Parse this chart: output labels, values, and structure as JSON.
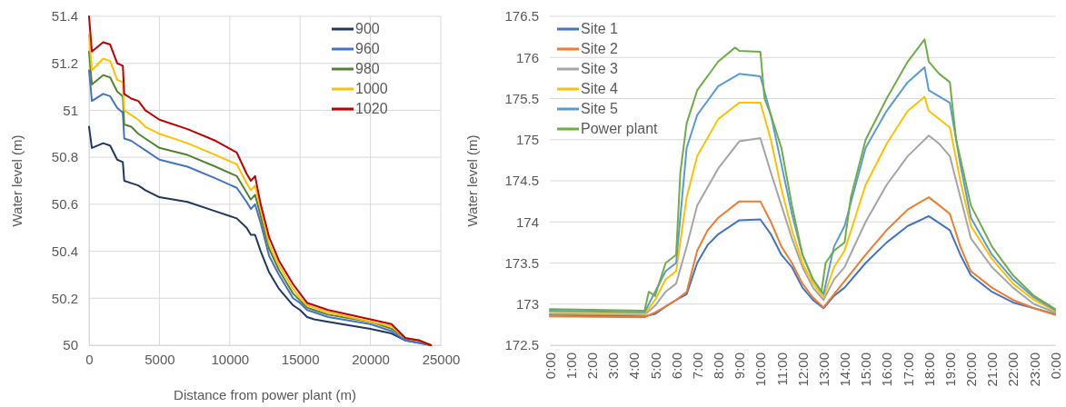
{
  "chart_data": [
    {
      "type": "line",
      "xlabel": "Distance from power plant (m)",
      "ylabel": "Water level (m)",
      "x": [
        0,
        200,
        1000,
        1500,
        2000,
        2400,
        2500,
        3000,
        3500,
        4000,
        5000,
        7000,
        9000,
        10500,
        11200,
        11500,
        11800,
        12200,
        12800,
        13500,
        14500,
        15000,
        15500,
        16000,
        17000,
        20000,
        21500,
        22500,
        23500,
        24300
      ],
      "xlim": [
        0,
        25000
      ],
      "xticks": [
        0,
        5000,
        10000,
        15000,
        20000,
        25000
      ],
      "ylim": [
        50,
        51.4
      ],
      "yticks": [
        50,
        50.2,
        50.4,
        50.6,
        50.8,
        51,
        51.2,
        51.4
      ],
      "grid": true,
      "legend": "top right",
      "line_style": "solid",
      "marker": "none",
      "series": [
        {
          "name": "900",
          "color": "#203864",
          "values": [
            50.93,
            50.84,
            50.86,
            50.85,
            50.79,
            50.78,
            50.7,
            50.69,
            50.68,
            50.66,
            50.63,
            50.61,
            50.57,
            50.54,
            50.5,
            50.47,
            50.47,
            50.4,
            50.31,
            50.24,
            50.17,
            50.15,
            50.12,
            50.11,
            50.1,
            50.07,
            50.05,
            50.02,
            50.01,
            50
          ]
        },
        {
          "name": "960",
          "color": "#4472c4",
          "values": [
            51.17,
            51.04,
            51.07,
            51.06,
            51.01,
            50.99,
            50.88,
            50.87,
            50.85,
            50.83,
            50.79,
            50.76,
            50.71,
            50.67,
            50.61,
            50.58,
            50.6,
            50.52,
            50.38,
            50.3,
            50.2,
            50.18,
            50.15,
            50.14,
            50.12,
            50.09,
            50.06,
            50.02,
            50.01,
            50
          ]
        },
        {
          "name": "980",
          "color": "#548235",
          "values": [
            51.25,
            51.11,
            51.15,
            51.14,
            51.08,
            51.06,
            50.94,
            50.93,
            50.9,
            50.88,
            50.84,
            50.81,
            50.76,
            50.72,
            50.65,
            50.62,
            50.64,
            50.55,
            50.41,
            50.32,
            50.22,
            50.19,
            50.16,
            50.15,
            50.13,
            50.1,
            50.07,
            50.03,
            50.02,
            50
          ]
        },
        {
          "name": "1000",
          "color": "#ffc000",
          "values": [
            51.32,
            51.17,
            51.22,
            51.21,
            51.13,
            51.12,
            51,
            50.98,
            50.96,
            50.93,
            50.9,
            50.86,
            50.81,
            50.77,
            50.69,
            50.66,
            50.68,
            50.58,
            50.43,
            50.34,
            50.24,
            50.2,
            50.17,
            50.16,
            50.14,
            50.1,
            50.08,
            50.03,
            50.02,
            50
          ]
        },
        {
          "name": "1020",
          "color": "#c00000",
          "values": [
            51.4,
            51.25,
            51.29,
            51.28,
            51.2,
            51.19,
            51.07,
            51.05,
            51.04,
            51,
            50.96,
            50.92,
            50.87,
            50.82,
            50.73,
            50.7,
            50.72,
            50.6,
            50.46,
            50.36,
            50.26,
            50.22,
            50.18,
            50.17,
            50.15,
            50.11,
            50.09,
            50.03,
            50.02,
            50
          ]
        }
      ]
    },
    {
      "type": "line",
      "ylabel": "Water level (m)",
      "xlim": [
        0,
        24
      ],
      "xticks": [
        {
          "value": 0,
          "label": "0:00"
        },
        {
          "value": 1,
          "label": "1:00"
        },
        {
          "value": 2,
          "label": "2:00"
        },
        {
          "value": 3,
          "label": "3:00"
        },
        {
          "value": 4,
          "label": "4:00"
        },
        {
          "value": 5,
          "label": "5:00"
        },
        {
          "value": 6,
          "label": "6:00"
        },
        {
          "value": 7,
          "label": "7:00"
        },
        {
          "value": 8,
          "label": "8:00"
        },
        {
          "value": 9,
          "label": "9:00"
        },
        {
          "value": 10,
          "label": "10:00"
        },
        {
          "value": 11,
          "label": "11:00"
        },
        {
          "value": 12,
          "label": "12:00"
        },
        {
          "value": 13,
          "label": "13:00"
        },
        {
          "value": 14,
          "label": "14:00"
        },
        {
          "value": 15,
          "label": "15:00"
        },
        {
          "value": 16,
          "label": "16:00"
        },
        {
          "value": 17,
          "label": "17:00"
        },
        {
          "value": 18,
          "label": "18:00"
        },
        {
          "value": 19,
          "label": "19:00"
        },
        {
          "value": 20,
          "label": "20:00"
        },
        {
          "value": 21,
          "label": "21:00"
        },
        {
          "value": 22,
          "label": "22:00"
        },
        {
          "value": 23,
          "label": "23:00"
        },
        {
          "value": 24,
          "label": "0:00"
        }
      ],
      "ylim": [
        172.5,
        176.5
      ],
      "yticks": [
        172.5,
        173,
        173.5,
        174,
        174.5,
        175,
        175.5,
        176,
        176.5
      ],
      "grid": "y",
      "legend": "top left",
      "line_style": "solid",
      "marker": "none",
      "series": [
        {
          "name": "Site 1",
          "color": "#4472c4",
          "x": [
            0,
            4.5,
            5,
            5.5,
            6,
            6.5,
            7,
            7.5,
            8,
            9,
            10,
            10.5,
            11,
            11.5,
            12,
            12.5,
            13,
            13.5,
            14,
            15,
            16,
            17,
            18,
            19,
            19.5,
            20,
            21,
            22,
            23,
            24
          ],
          "values": [
            172.87,
            172.85,
            172.88,
            172.97,
            173.05,
            173.12,
            173.5,
            173.72,
            173.85,
            174.02,
            174.03,
            173.85,
            173.6,
            173.45,
            173.2,
            173.05,
            172.95,
            173.1,
            173.2,
            173.5,
            173.75,
            173.95,
            174.07,
            173.9,
            173.6,
            173.35,
            173.15,
            173.02,
            172.95,
            172.88
          ]
        },
        {
          "name": "Site 2",
          "color": "#ed7d31",
          "x": [
            0,
            4.5,
            5,
            5.5,
            6,
            6.5,
            7,
            7.5,
            8,
            9,
            10,
            10.5,
            11,
            11.5,
            12,
            12.5,
            13,
            13.5,
            14,
            15,
            16,
            17,
            18,
            18.5,
            19,
            19.5,
            20,
            21,
            22,
            23,
            24
          ],
          "values": [
            172.85,
            172.84,
            172.9,
            172.97,
            173.05,
            173.15,
            173.65,
            173.9,
            174.05,
            174.25,
            174.25,
            174,
            173.7,
            173.5,
            173.25,
            173.08,
            172.96,
            173.12,
            173.28,
            173.6,
            173.9,
            174.15,
            174.3,
            174.2,
            174.1,
            173.7,
            173.4,
            173.2,
            173.05,
            172.95,
            172.87
          ]
        },
        {
          "name": "Site 3",
          "color": "#a5a5a5",
          "x": [
            0,
            4.5,
            5,
            5.5,
            6,
            6.5,
            7,
            8,
            9,
            10,
            10.5,
            11,
            11.5,
            12,
            12.5,
            13,
            13.5,
            14,
            15,
            16,
            17,
            18,
            18.5,
            19,
            19.5,
            20,
            21,
            22,
            23,
            24
          ],
          "values": [
            172.88,
            172.87,
            172.98,
            173.15,
            173.25,
            173.7,
            174.2,
            174.65,
            174.98,
            175.02,
            174.6,
            174.2,
            173.8,
            173.45,
            173.2,
            173.05,
            173.3,
            173.45,
            174,
            174.45,
            174.8,
            175.05,
            174.95,
            174.8,
            174.3,
            173.8,
            173.45,
            173.2,
            173,
            172.9
          ]
        },
        {
          "name": "Site 4",
          "color": "#ffc000",
          "x": [
            0,
            4.5,
            5,
            5.5,
            6,
            6.5,
            7,
            8,
            9,
            10,
            10.5,
            11,
            11.5,
            12,
            12.5,
            13,
            13.5,
            14,
            15,
            16,
            17,
            17.8,
            18,
            19,
            19.5,
            20,
            21,
            22,
            23,
            24
          ],
          "values": [
            172.9,
            172.88,
            173.05,
            173.3,
            173.4,
            174.3,
            174.8,
            175.25,
            175.45,
            175.45,
            175,
            174.4,
            173.9,
            173.5,
            173.25,
            173.08,
            173.45,
            173.65,
            174.45,
            174.95,
            175.35,
            175.52,
            175.35,
            175.15,
            174.5,
            173.95,
            173.55,
            173.25,
            173.05,
            172.92
          ]
        },
        {
          "name": "Site 5",
          "color": "#5b9bd5",
          "x": [
            0,
            4.5,
            5,
            5.5,
            6,
            6.5,
            7,
            8,
            9,
            10,
            10.5,
            11,
            11.5,
            12,
            12.5,
            13,
            13.5,
            14,
            15,
            16,
            17,
            17.8,
            18,
            19,
            19.5,
            20,
            21,
            22,
            23,
            24
          ],
          "values": [
            172.92,
            172.9,
            173.15,
            173.4,
            173.5,
            174.9,
            175.3,
            175.65,
            175.8,
            175.77,
            175.3,
            174.7,
            174.1,
            173.6,
            173.3,
            173.12,
            173.7,
            173.95,
            174.9,
            175.35,
            175.7,
            175.88,
            175.6,
            175.45,
            174.7,
            174.05,
            173.6,
            173.3,
            173.08,
            172.93
          ]
        },
        {
          "name": "Power plant",
          "color": "#70ad47",
          "x": [
            0,
            4.5,
            4.7,
            5,
            5.5,
            6,
            6.2,
            6.5,
            7,
            8,
            8.8,
            9,
            10,
            10.2,
            10.5,
            11,
            11.5,
            12,
            12.5,
            12.9,
            13.1,
            13.5,
            14,
            14.3,
            15,
            16,
            17,
            17.8,
            18,
            18.5,
            19,
            19.3,
            20,
            21,
            22,
            23,
            24
          ],
          "values": [
            172.94,
            172.92,
            173.15,
            173.1,
            173.5,
            173.6,
            174.6,
            175.2,
            175.6,
            175.95,
            176.12,
            176.08,
            176.07,
            175.5,
            175.3,
            174.9,
            174.2,
            173.6,
            173.3,
            173.15,
            173.5,
            173.65,
            173.75,
            174.3,
            175,
            175.5,
            175.95,
            176.22,
            175.95,
            175.8,
            175.7,
            175,
            174.2,
            173.7,
            173.35,
            173.1,
            172.94
          ]
        }
      ]
    }
  ]
}
